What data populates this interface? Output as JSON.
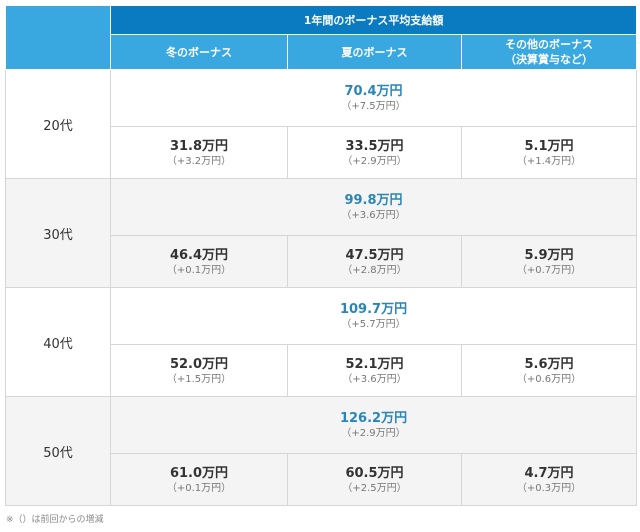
{
  "header": {
    "title": "1年間のボーナス平均支給額",
    "columns": [
      "冬のボーナス",
      "夏のボーナス",
      "その他のボーナス",
      "（決算賞与など）"
    ]
  },
  "rows": [
    {
      "age": "20代",
      "total": "70.4万円",
      "total_change": "（+7.5万円）",
      "winter": "31.8万円",
      "winter_change": "（+3.2万円）",
      "summer": "33.5万円",
      "summer_change": "（+2.9万円）",
      "other": "5.1万円",
      "other_change": "（+1.4万円）"
    },
    {
      "age": "30代",
      "total": "99.8万円",
      "total_change": "（+3.6万円）",
      "winter": "46.4万円",
      "winter_change": "（+0.1万円）",
      "summer": "47.5万円",
      "summer_change": "（+2.8万円）",
      "other": "5.9万円",
      "other_change": "（+0.7万円）"
    },
    {
      "age": "40代",
      "total": "109.7万円",
      "total_change": "（+5.7万円）",
      "winter": "52.0万円",
      "winter_change": "（+1.5万円）",
      "summer": "52.1万円",
      "summer_change": "（+3.6万円）",
      "other": "5.6万円",
      "other_change": "（+0.6万円）"
    },
    {
      "age": "50代",
      "total": "126.2万円",
      "total_change": "（+2.9万円）",
      "winter": "61.0万円",
      "winter_change": "（+0.1万円）",
      "summer": "60.5万円",
      "summer_change": "（+2.5万円）",
      "other": "4.7万円",
      "other_change": "（+0.3万円）"
    }
  ],
  "footnote": "※（）は前回からの増減",
  "colors": {
    "header_dark": "#0a7bc1",
    "header_light": "#3aa8e0",
    "total_text": "#2a86b8"
  }
}
